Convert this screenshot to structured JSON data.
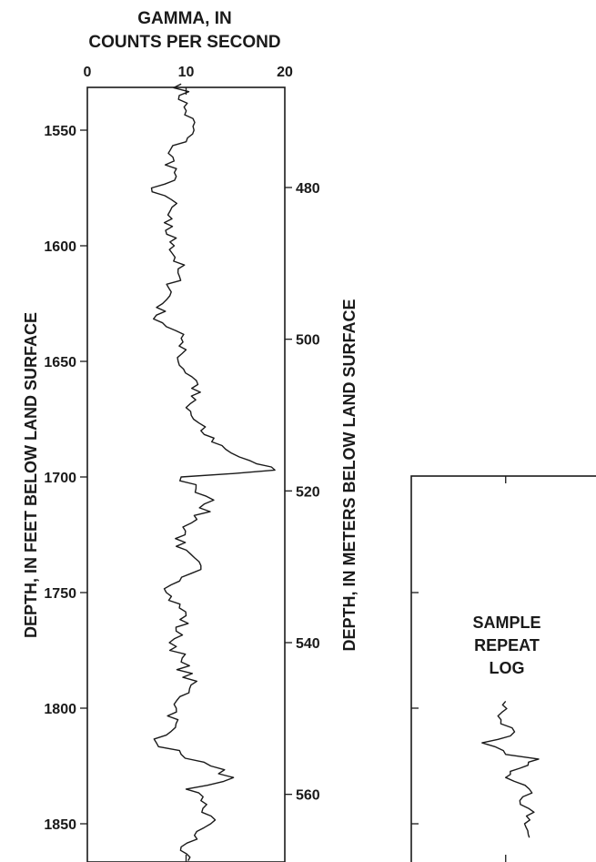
{
  "chart_data": {
    "type": "line",
    "title": [
      "GAMMA, IN",
      "COUNTS PER SECOND"
    ],
    "xlabel": "GAMMA, IN COUNTS PER SECOND",
    "ylabel": "DEPTH, IN FEET BELOW LAND SURFACE",
    "ylabel_right": "DEPTH, IN METERS BELOW LAND SURFACE",
    "x_ticks": [
      "0",
      "10",
      "20"
    ],
    "xlim": [
      0,
      20
    ],
    "y_ticks_ft": [
      "1550",
      "1600",
      "1650",
      "1700",
      "1750",
      "1800",
      "1850"
    ],
    "y_ticks_m": [
      "480",
      "500",
      "520",
      "540",
      "560"
    ],
    "ylim_ft": [
      1527,
      1868
    ],
    "series": [
      {
        "depth_ft": [
          1530,
          1540,
          1550,
          1560,
          1570,
          1575,
          1580,
          1590,
          1600,
          1610,
          1620,
          1630,
          1640,
          1645,
          1650,
          1660,
          1670,
          1680,
          1688,
          1693,
          1697,
          1700,
          1705,
          1710,
          1720,
          1730,
          1740,
          1750,
          1760,
          1770,
          1780,
          1790,
          1800,
          1810,
          1815,
          1820,
          1825,
          1830,
          1835,
          1840,
          1850,
          1860,
          1866
        ],
        "gamma_cps": [
          9.5,
          9.8,
          10.8,
          8.2,
          9.0,
          6.5,
          8.5,
          7.8,
          8.8,
          9.2,
          8.5,
          7.0,
          9.5,
          10.0,
          9.2,
          11.2,
          10.0,
          11.5,
          14.0,
          16.5,
          19.0,
          9.5,
          11.0,
          12.8,
          10.5,
          9.0,
          11.5,
          8.0,
          10.0,
          8.8,
          9.5,
          10.5,
          9.0,
          8.5,
          7.0,
          9.5,
          12.5,
          14.8,
          10.0,
          11.5,
          12.5,
          9.5,
          10.2
        ]
      }
    ],
    "inset": {
      "label": [
        "SAMPLE",
        "REPEAT",
        "LOG"
      ],
      "depth_ft": [
        1797,
        1805,
        1812,
        1815,
        1820,
        1822,
        1826,
        1830,
        1835,
        1840,
        1845,
        1850,
        1856
      ],
      "gamma_cps": [
        10.0,
        9.5,
        10.5,
        7.5,
        10.0,
        13.5,
        11.5,
        10.0,
        12.5,
        11.5,
        13.0,
        12.0,
        12.5
      ]
    }
  }
}
